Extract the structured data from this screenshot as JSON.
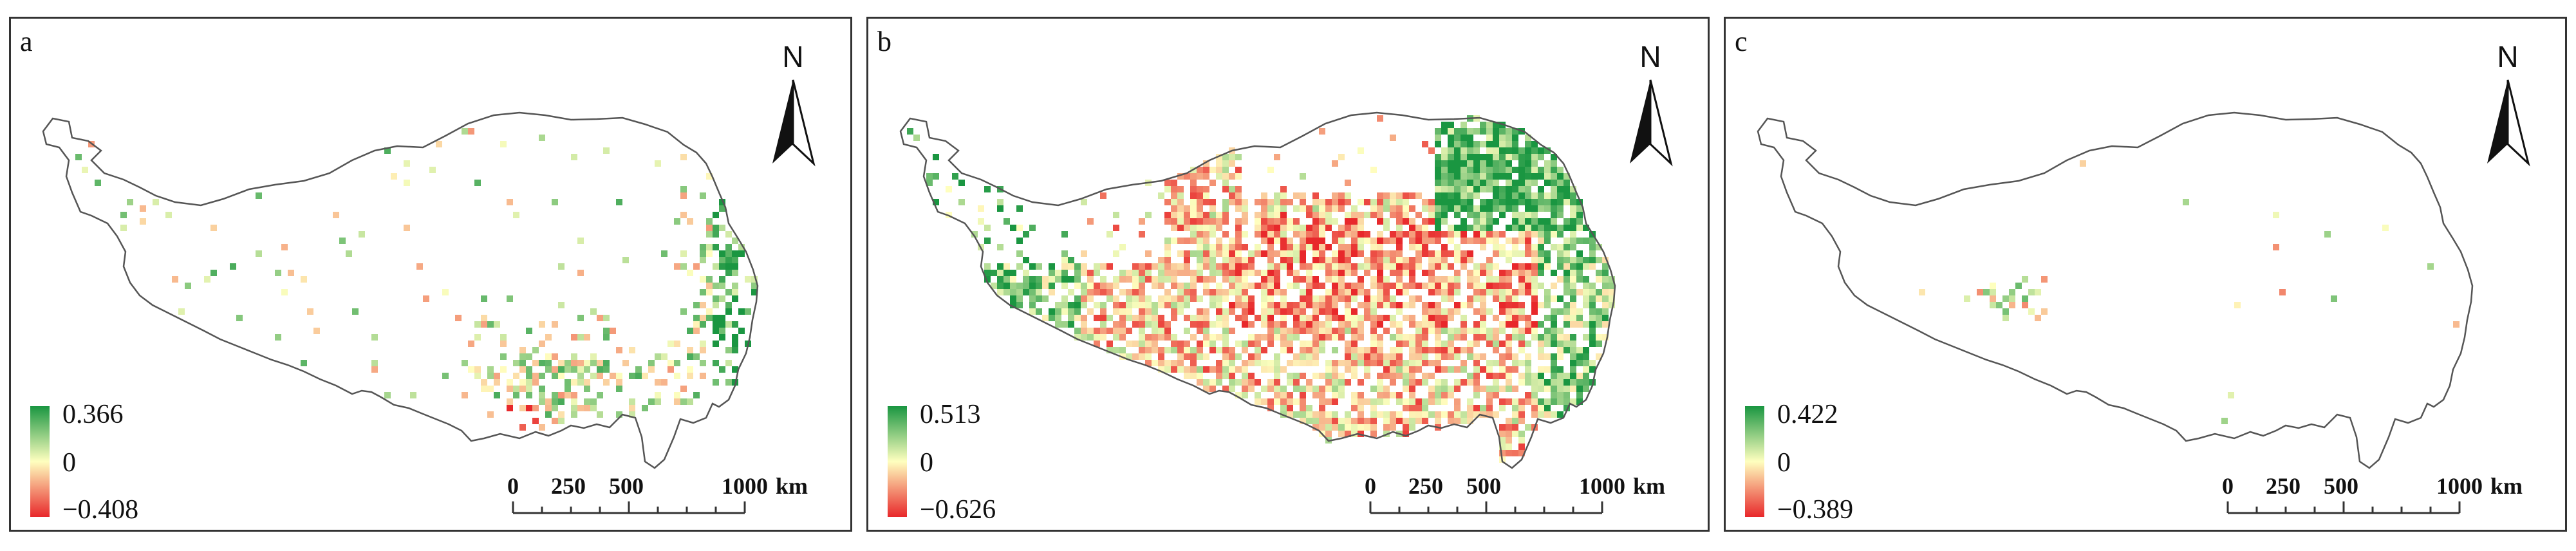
{
  "panels": [
    {
      "label": "a",
      "legend": {
        "max": "0.366",
        "mid": "0",
        "min": "−0.408"
      },
      "north": "N",
      "scalebar": {
        "ticks": [
          "0",
          "250",
          "500",
          "1000"
        ],
        "unit": "km"
      },
      "pattern": "south-east"
    },
    {
      "label": "b",
      "legend": {
        "max": "0.513",
        "mid": "0",
        "min": "−0.626"
      },
      "north": "N",
      "scalebar": {
        "ticks": [
          "0",
          "250",
          "500",
          "1000"
        ],
        "unit": "km"
      },
      "pattern": "widespread"
    },
    {
      "label": "c",
      "legend": {
        "max": "0.422",
        "mid": "0",
        "min": "−0.389"
      },
      "north": "N",
      "scalebar": {
        "ticks": [
          "0",
          "250",
          "500",
          "1000"
        ],
        "unit": "km"
      },
      "pattern": "sparse"
    }
  ],
  "colors": {
    "positive": "#1a9641",
    "neutral": "#ffffbf",
    "negative": "#e8282b",
    "outline": "#555555"
  }
}
